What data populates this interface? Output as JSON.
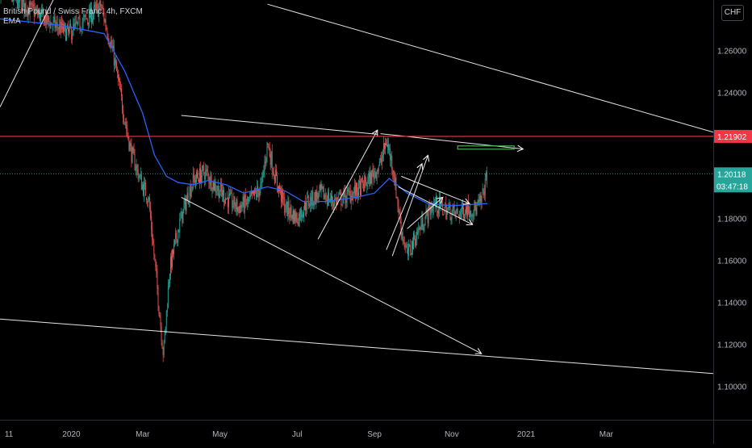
{
  "legend": {
    "symbol": "British Pound / Swiss Franc, 4h, FXCM",
    "indicator": "EMA"
  },
  "currency_button": "CHF",
  "colors": {
    "background": "#000000",
    "up": "#26a69a",
    "down": "#ef5350",
    "ema": "#2962ff",
    "resistance": "#f23645",
    "drawings": "#ffffff",
    "target_box": "#4caf50",
    "last_price_badge": "#26a69a"
  },
  "chart_data": {
    "type": "candlestick",
    "title": "British Pound / Swiss Franc, 4h, FXCM",
    "xlabel": "",
    "ylabel": "",
    "y_ticks": [
      "1.26000",
      "1.24000",
      "1.22000",
      "1.18000",
      "1.16000",
      "1.14000",
      "1.12000",
      "1.10000"
    ],
    "x_ticks": [
      "11",
      "2020",
      "Mar",
      "May",
      "Jul",
      "Sep",
      "Nov",
      "2021",
      "Mar"
    ],
    "ylim": [
      1.084,
      1.284
    ],
    "grid": false,
    "legend_position": "top-left",
    "price_path": [
      [
        0,
        1.289
      ],
      [
        1.2,
        1.278
      ],
      [
        1.6,
        1.274
      ],
      [
        2.3,
        1.268
      ],
      [
        3.0,
        1.276
      ],
      [
        3.4,
        1.281
      ],
      [
        3.8,
        1.259
      ],
      [
        4.1,
        1.235
      ],
      [
        4.4,
        1.212
      ],
      [
        4.8,
        1.195
      ],
      [
        5.0,
        1.19
      ],
      [
        5.3,
        1.145
      ],
      [
        5.5,
        1.115
      ],
      [
        5.7,
        1.155
      ],
      [
        6.0,
        1.175
      ],
      [
        6.3,
        1.19
      ],
      [
        6.5,
        1.198
      ],
      [
        6.9,
        1.202
      ],
      [
        7.2,
        1.196
      ],
      [
        7.6,
        1.19
      ],
      [
        8.0,
        1.185
      ],
      [
        8.4,
        1.188
      ],
      [
        8.8,
        1.195
      ],
      [
        9.0,
        1.216
      ],
      [
        9.25,
        1.2
      ],
      [
        9.6,
        1.185
      ],
      [
        10.0,
        1.18
      ],
      [
        10.3,
        1.187
      ],
      [
        10.8,
        1.192
      ],
      [
        11.2,
        1.188
      ],
      [
        11.6,
        1.19
      ],
      [
        12.0,
        1.193
      ],
      [
        12.4,
        1.198
      ],
      [
        12.8,
        1.206
      ],
      [
        13.0,
        1.217
      ],
      [
        13.2,
        1.206
      ],
      [
        13.5,
        1.175
      ],
      [
        13.7,
        1.162
      ],
      [
        14.0,
        1.172
      ],
      [
        14.3,
        1.18
      ],
      [
        14.6,
        1.187
      ],
      [
        15.0,
        1.184
      ],
      [
        15.4,
        1.182
      ],
      [
        15.7,
        1.185
      ],
      [
        16.0,
        1.184
      ],
      [
        16.2,
        1.188
      ],
      [
        16.3,
        1.195
      ],
      [
        16.4,
        1.2012
      ]
    ],
    "ema_path": [
      [
        0,
        1.275
      ],
      [
        2.0,
        1.272
      ],
      [
        3.5,
        1.268
      ],
      [
        4.2,
        1.25
      ],
      [
        4.8,
        1.23
      ],
      [
        5.2,
        1.21
      ],
      [
        5.6,
        1.2
      ],
      [
        6.0,
        1.197
      ],
      [
        6.5,
        1.196
      ],
      [
        7.0,
        1.198
      ],
      [
        7.6,
        1.196
      ],
      [
        8.2,
        1.192
      ],
      [
        9.0,
        1.195
      ],
      [
        9.6,
        1.193
      ],
      [
        10.2,
        1.188
      ],
      [
        11.0,
        1.188
      ],
      [
        12.0,
        1.19
      ],
      [
        12.6,
        1.192
      ],
      [
        13.1,
        1.199
      ],
      [
        13.7,
        1.192
      ],
      [
        14.4,
        1.187
      ],
      [
        15.2,
        1.186
      ],
      [
        16.4,
        1.187
      ]
    ],
    "x_domain": [
      0,
      24
    ],
    "x_tick_positions": [
      0.3,
      2.4,
      4.8,
      7.4,
      10.0,
      12.6,
      15.2,
      17.7,
      20.4
    ],
    "resistance": {
      "price": 1.21902,
      "label": "1.21902"
    },
    "last_price": {
      "price": 1.20118,
      "label": "1.20118",
      "countdown": "03:47:18"
    },
    "target_zone": {
      "x": [
        15.4,
        17.3
      ],
      "price": 1.2137
    },
    "trendlines": [
      {
        "from": [
          9.0,
          1.282
        ],
        "to": [
          24.0,
          1.221
        ],
        "arrow": false
      },
      {
        "from": [
          0.0,
          1.233
        ],
        "to": [
          2.0,
          1.29
        ],
        "arrow": false
      },
      {
        "from": [
          6.1,
          1.229
        ],
        "to": [
          12.7,
          1.22
        ],
        "arrow": false
      },
      {
        "from": [
          12.8,
          1.2203
        ],
        "to": [
          17.6,
          1.213
        ],
        "arrow": true
      },
      {
        "from": [
          6.1,
          1.19
        ],
        "to": [
          16.2,
          1.1155
        ],
        "arrow": true
      },
      {
        "from": [
          0.0,
          1.132
        ],
        "to": [
          24.0,
          1.106
        ],
        "arrow": false
      },
      {
        "from": [
          10.7,
          1.17
        ],
        "to": [
          12.7,
          1.222
        ],
        "arrow": true
      },
      {
        "from": [
          13.0,
          1.165
        ],
        "to": [
          14.2,
          1.206
        ],
        "arrow": true
      },
      {
        "from": [
          13.2,
          1.162
        ],
        "to": [
          14.4,
          1.21
        ],
        "arrow": true
      },
      {
        "from": [
          13.5,
          1.2
        ],
        "to": [
          15.8,
          1.187
        ],
        "arrow": true
      },
      {
        "from": [
          13.4,
          1.195
        ],
        "to": [
          15.9,
          1.177
        ],
        "arrow": true
      },
      {
        "from": [
          13.7,
          1.175
        ],
        "to": [
          14.9,
          1.19
        ],
        "arrow": true
      }
    ]
  }
}
